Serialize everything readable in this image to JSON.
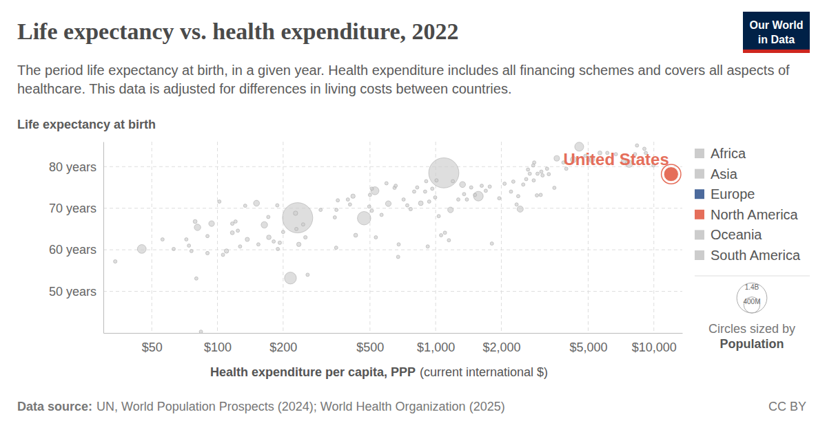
{
  "chart_data": {
    "type": "scatter",
    "title": "Life expectancy vs. health expenditure, 2022",
    "subtitle": "The period life expectancy at birth, in a given year. Health expenditure includes all financing schemes and covers all aspects of healthcare. This data is adjusted for differences in living costs between countries.",
    "y_label": "Life expectancy at birth",
    "x_label": "Health expenditure per capita, PPP",
    "x_label_note": "(current international $)",
    "log": "x",
    "grid": true,
    "legend": "right",
    "xlim": [
      30,
      13500
    ],
    "ylim": [
      40,
      86
    ],
    "xticks": [
      {
        "value": 50,
        "label": "$50"
      },
      {
        "value": 100,
        "label": "$100"
      },
      {
        "value": 200,
        "label": "$200"
      },
      {
        "value": 500,
        "label": "$500"
      },
      {
        "value": 1000,
        "label": "$1,000"
      },
      {
        "value": 2000,
        "label": "$2,000"
      },
      {
        "value": 5000,
        "label": "$5,000"
      },
      {
        "value": 10000,
        "label": "$10,000"
      }
    ],
    "yticks": [
      {
        "value": 50,
        "label": "50 years"
      },
      {
        "value": 60,
        "label": "60 years"
      },
      {
        "value": 70,
        "label": "70 years"
      },
      {
        "value": 80,
        "label": "80 years"
      }
    ],
    "points": {
      "color": "#cccccc",
      "x": [
        34,
        45,
        56,
        63,
        72,
        74,
        79,
        81,
        76,
        80,
        84,
        94,
        102,
        90,
        90,
        106,
        110,
        117,
        117,
        121,
        124,
        134,
        137,
        127,
        151,
        154,
        164,
        171,
        172,
        181,
        188,
        193,
        189,
        200,
        216,
        233,
        230,
        236,
        247,
        259,
        253,
        228,
        297,
        345,
        350,
        351,
        356,
        396,
        405,
        418,
        430,
        470,
        500,
        496,
        510,
        527,
        510,
        532,
        565,
        595,
        607,
        648,
        656,
        677,
        673,
        713,
        741,
        768,
        797,
        823,
        855,
        895,
        905,
        934,
        965,
        920,
        995,
        1009,
        1090,
        1033,
        1059,
        1103,
        1150,
        1170,
        1199,
        1270,
        1328,
        1350,
        1390,
        1455,
        1514,
        1570,
        1626,
        1697,
        1810,
        1770,
        1956,
        2070,
        2215,
        2270,
        2350,
        2390,
        2440,
        2520,
        2600,
        2650,
        2700,
        2800,
        2815,
        2910,
        3030,
        2830,
        2930,
        3050,
        3090,
        3240,
        3300,
        3500,
        3590,
        3850,
        3970,
        4280,
        4550,
        4860,
        5000,
        5180,
        5660,
        6120,
        6700,
        7700,
        8370,
        9050,
        9190,
        8200,
        9960,
        7270
      ],
      "values": [
        57.2,
        60.2,
        62.5,
        60.2,
        62.5,
        61.0,
        66.8,
        65.4,
        59.7,
        53.1,
        40.3,
        66.3,
        71.6,
        59.2,
        63.3,
        58.8,
        59.7,
        66.3,
        64.1,
        66.8,
        64.6,
        70.6,
        62.5,
        60.8,
        71.2,
        61.3,
        66.0,
        67.9,
        63.0,
        62.0,
        70.7,
        61.7,
        60.2,
        64.3,
        53.2,
        67.7,
        65.0,
        61.3,
        66.1,
        54.0,
        63.0,
        68.8,
        69.6,
        67.8,
        60.5,
        69.6,
        71.9,
        72.1,
        70.9,
        72.9,
        63.5,
        67.6,
        73.2,
        70.4,
        74.7,
        74.2,
        69.4,
        63.0,
        68.4,
        76.0,
        71.1,
        74.9,
        75.4,
        61.3,
        58.3,
        72.1,
        70.7,
        69.8,
        74.0,
        75.0,
        71.2,
        74.0,
        76.5,
        71.6,
        74.7,
        60.8,
        72.6,
        76.7,
        78.5,
        68.1,
        63.5,
        64.1,
        62.3,
        69.6,
        76.5,
        72.1,
        75.7,
        73.4,
        72.1,
        75.0,
        73.2,
        72.9,
        75.4,
        74.2,
        61.5,
        75.2,
        72.4,
        75.9,
        74.0,
        76.4,
        70.9,
        72.9,
        69.8,
        75.7,
        77.0,
        79.3,
        78.3,
        80.3,
        76.7,
        73.1,
        73.2,
        81.0,
        78.3,
        78.8,
        77.9,
        79.5,
        78.2,
        74.9,
        82.0,
        81.0,
        79.5,
        81.7,
        84.8,
        82.6,
        81.7,
        81.8,
        83.3,
        83.3,
        83.0,
        80.7,
        85.1,
        84.3,
        83.3,
        83.0,
        80.3,
        81.3
      ],
      "population": [
        20000000,
        120000000,
        10000000,
        15000000,
        8000000,
        12000000,
        25000000,
        65000000,
        5000000,
        6000000,
        5000000,
        50000000,
        4000000,
        20000000,
        15000000,
        10000000,
        30000000,
        20000000,
        25000000,
        12000000,
        18000000,
        9000000,
        28000000,
        14000000,
        55000000,
        18000000,
        65000000,
        10000000,
        33000000,
        17000000,
        7000000,
        20000000,
        3000000,
        12000000,
        220000000,
        1420000000,
        10000000,
        30000000,
        6000000,
        5000000,
        20000000,
        30000000,
        3000000,
        12000000,
        8000000,
        5000000,
        10000000,
        6000000,
        4000000,
        30000000,
        25000000,
        280000000,
        5000000,
        10000000,
        3000000,
        100000000,
        8000000,
        6000000,
        15000000,
        3000000,
        50000000,
        7000000,
        2000000,
        4000000,
        2000000,
        10000000,
        6000000,
        20000000,
        12000000,
        5000000,
        35000000,
        4000000,
        3000000,
        7000000,
        10000000,
        2000000,
        6000000,
        3000000,
        1410000000,
        3000000,
        2000000,
        2000000,
        5000000,
        50000000,
        4000000,
        10000000,
        55000000,
        7000000,
        3000000,
        19000000,
        9000000,
        145000000,
        5000000,
        10000000,
        2000000,
        3000000,
        2000000,
        6000000,
        4000000,
        5000000,
        2000000,
        3000000,
        60000000,
        4000000,
        10000000,
        2000000,
        6000000,
        3000000,
        8000000,
        2000000,
        1000000,
        4000000,
        10000000,
        5000000,
        3000000,
        10000000,
        2000000,
        1000000,
        47000000,
        10000000,
        3000000,
        60000000,
        125000000,
        5000000,
        10000000,
        68000000,
        26000000,
        10000000,
        5000000,
        84000000,
        1000000,
        9000000,
        5000000,
        6000000,
        1000000,
        38000000
      ]
    },
    "highlight": {
      "label": "United States",
      "x": 12000,
      "value": 78.2,
      "population": 333000000,
      "color": "#e56e5a"
    },
    "legend_items": [
      {
        "label": "Africa",
        "color": "#cccccc"
      },
      {
        "label": "Asia",
        "color": "#cccccc"
      },
      {
        "label": "Europe",
        "color": "#4c6a9c"
      },
      {
        "label": "North America",
        "color": "#e56e5a"
      },
      {
        "label": "Oceania",
        "color": "#cccccc"
      },
      {
        "label": "South America",
        "color": "#cccccc"
      }
    ],
    "size_legend": {
      "title": "Circles sized by",
      "variable": "Population",
      "values": [
        1400000000,
        400000000
      ],
      "labels": [
        "1.4B",
        "400M"
      ]
    },
    "source_label": "Data source:",
    "source": "UN, World Population Prospects (2024); World Health Organization (2025)",
    "license": "CC BY",
    "logo": [
      "Our World",
      "in Data"
    ]
  }
}
